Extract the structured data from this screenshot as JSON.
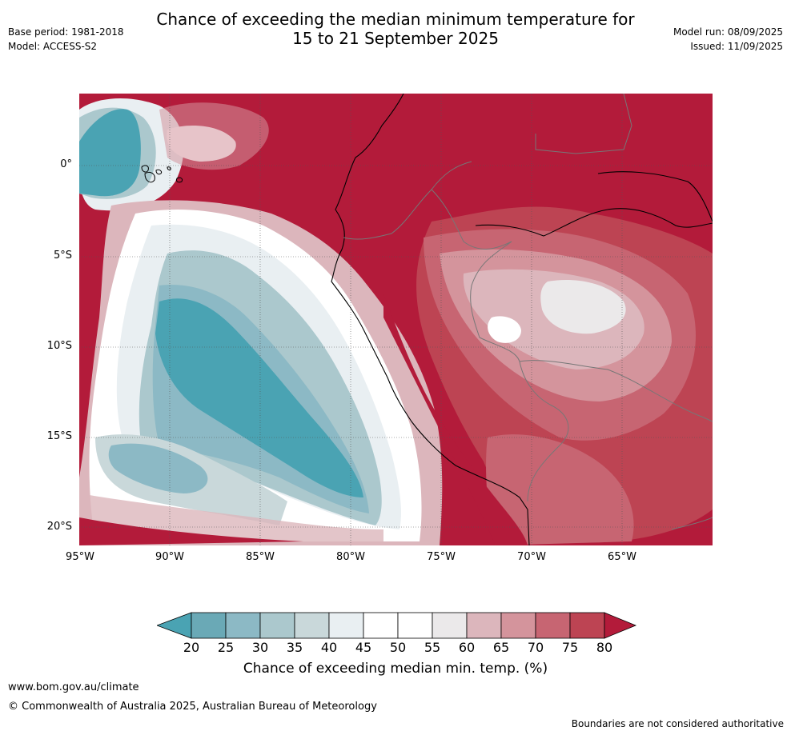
{
  "header": {
    "base_period": "Base period: 1981-2018",
    "model": "Model: ACCESS-S2",
    "title_line1": "Chance of exceeding the median minimum temperature for",
    "title_line2": "15 to 21 September 2025",
    "model_run": "Model run: 08/09/2025",
    "issued": "Issued: 11/09/2025"
  },
  "map": {
    "lat_ticks": [
      "0°",
      "5°S",
      "10°S",
      "15°S",
      "20°S"
    ],
    "lon_ticks": [
      "95°W",
      "90°W",
      "85°W",
      "80°W",
      "75°W",
      "70°W",
      "65°W"
    ],
    "colors": {
      "c_lt20": "#4aa3b3",
      "c_20_25": "#6aa9b6",
      "c_25_30": "#8cb9c5",
      "c_30_35": "#abc8cd",
      "c_35_40": "#c9d8da",
      "c_40_45": "#e9eff2",
      "c_45_55": "#ffffff",
      "c_55_60": "#ebe9ea",
      "c_60_65": "#dcb6bc",
      "c_65_70": "#d4949c",
      "c_70_75": "#c76572",
      "c_75_80": "#bd4453",
      "c_gt80": "#b31b3a"
    }
  },
  "colorbar": {
    "labels": [
      "20",
      "25",
      "30",
      "35",
      "40",
      "45",
      "50",
      "55",
      "60",
      "65",
      "70",
      "75",
      "80"
    ],
    "title": "Chance of exceeding median min. temp. (%)"
  },
  "footer": {
    "url": "www.bom.gov.au/climate",
    "copyright": "© Commonwealth of Australia 2025, Australian Bureau of Meteorology",
    "disclaimer": "Boundaries are not considered authoritative"
  }
}
